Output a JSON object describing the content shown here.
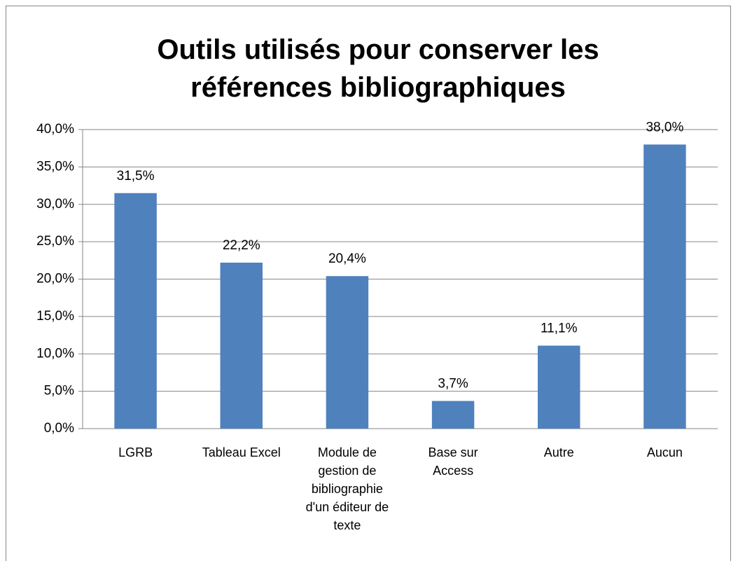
{
  "chart_data": {
    "type": "bar",
    "title": "Outils utilisés pour conserver les références bibliographiques",
    "categories": [
      "LGRB",
      "Tableau Excel",
      "Module de gestion de bibliographie d'un éditeur de texte",
      "Base sur Access",
      "Autre",
      "Aucun"
    ],
    "values": [
      31.5,
      22.2,
      20.4,
      3.7,
      11.1,
      38.0
    ],
    "value_labels": [
      "31,5%",
      "22,2%",
      "20,4%",
      "3,7%",
      "11,1%",
      "38,0%"
    ],
    "color": "#4f81bd",
    "ylim": [
      0,
      40
    ],
    "yticks": [
      {
        "value": 0,
        "label": "0,0%"
      },
      {
        "value": 5,
        "label": "5,0%"
      },
      {
        "value": 10,
        "label": "10,0%"
      },
      {
        "value": 15,
        "label": "15,0%"
      },
      {
        "value": 20,
        "label": "20,0%"
      },
      {
        "value": 25,
        "label": "25,0%"
      },
      {
        "value": 30,
        "label": "30,0%"
      },
      {
        "value": 35,
        "label": "35,0%"
      },
      {
        "value": 40,
        "label": "40,0%"
      }
    ],
    "grid": true
  }
}
